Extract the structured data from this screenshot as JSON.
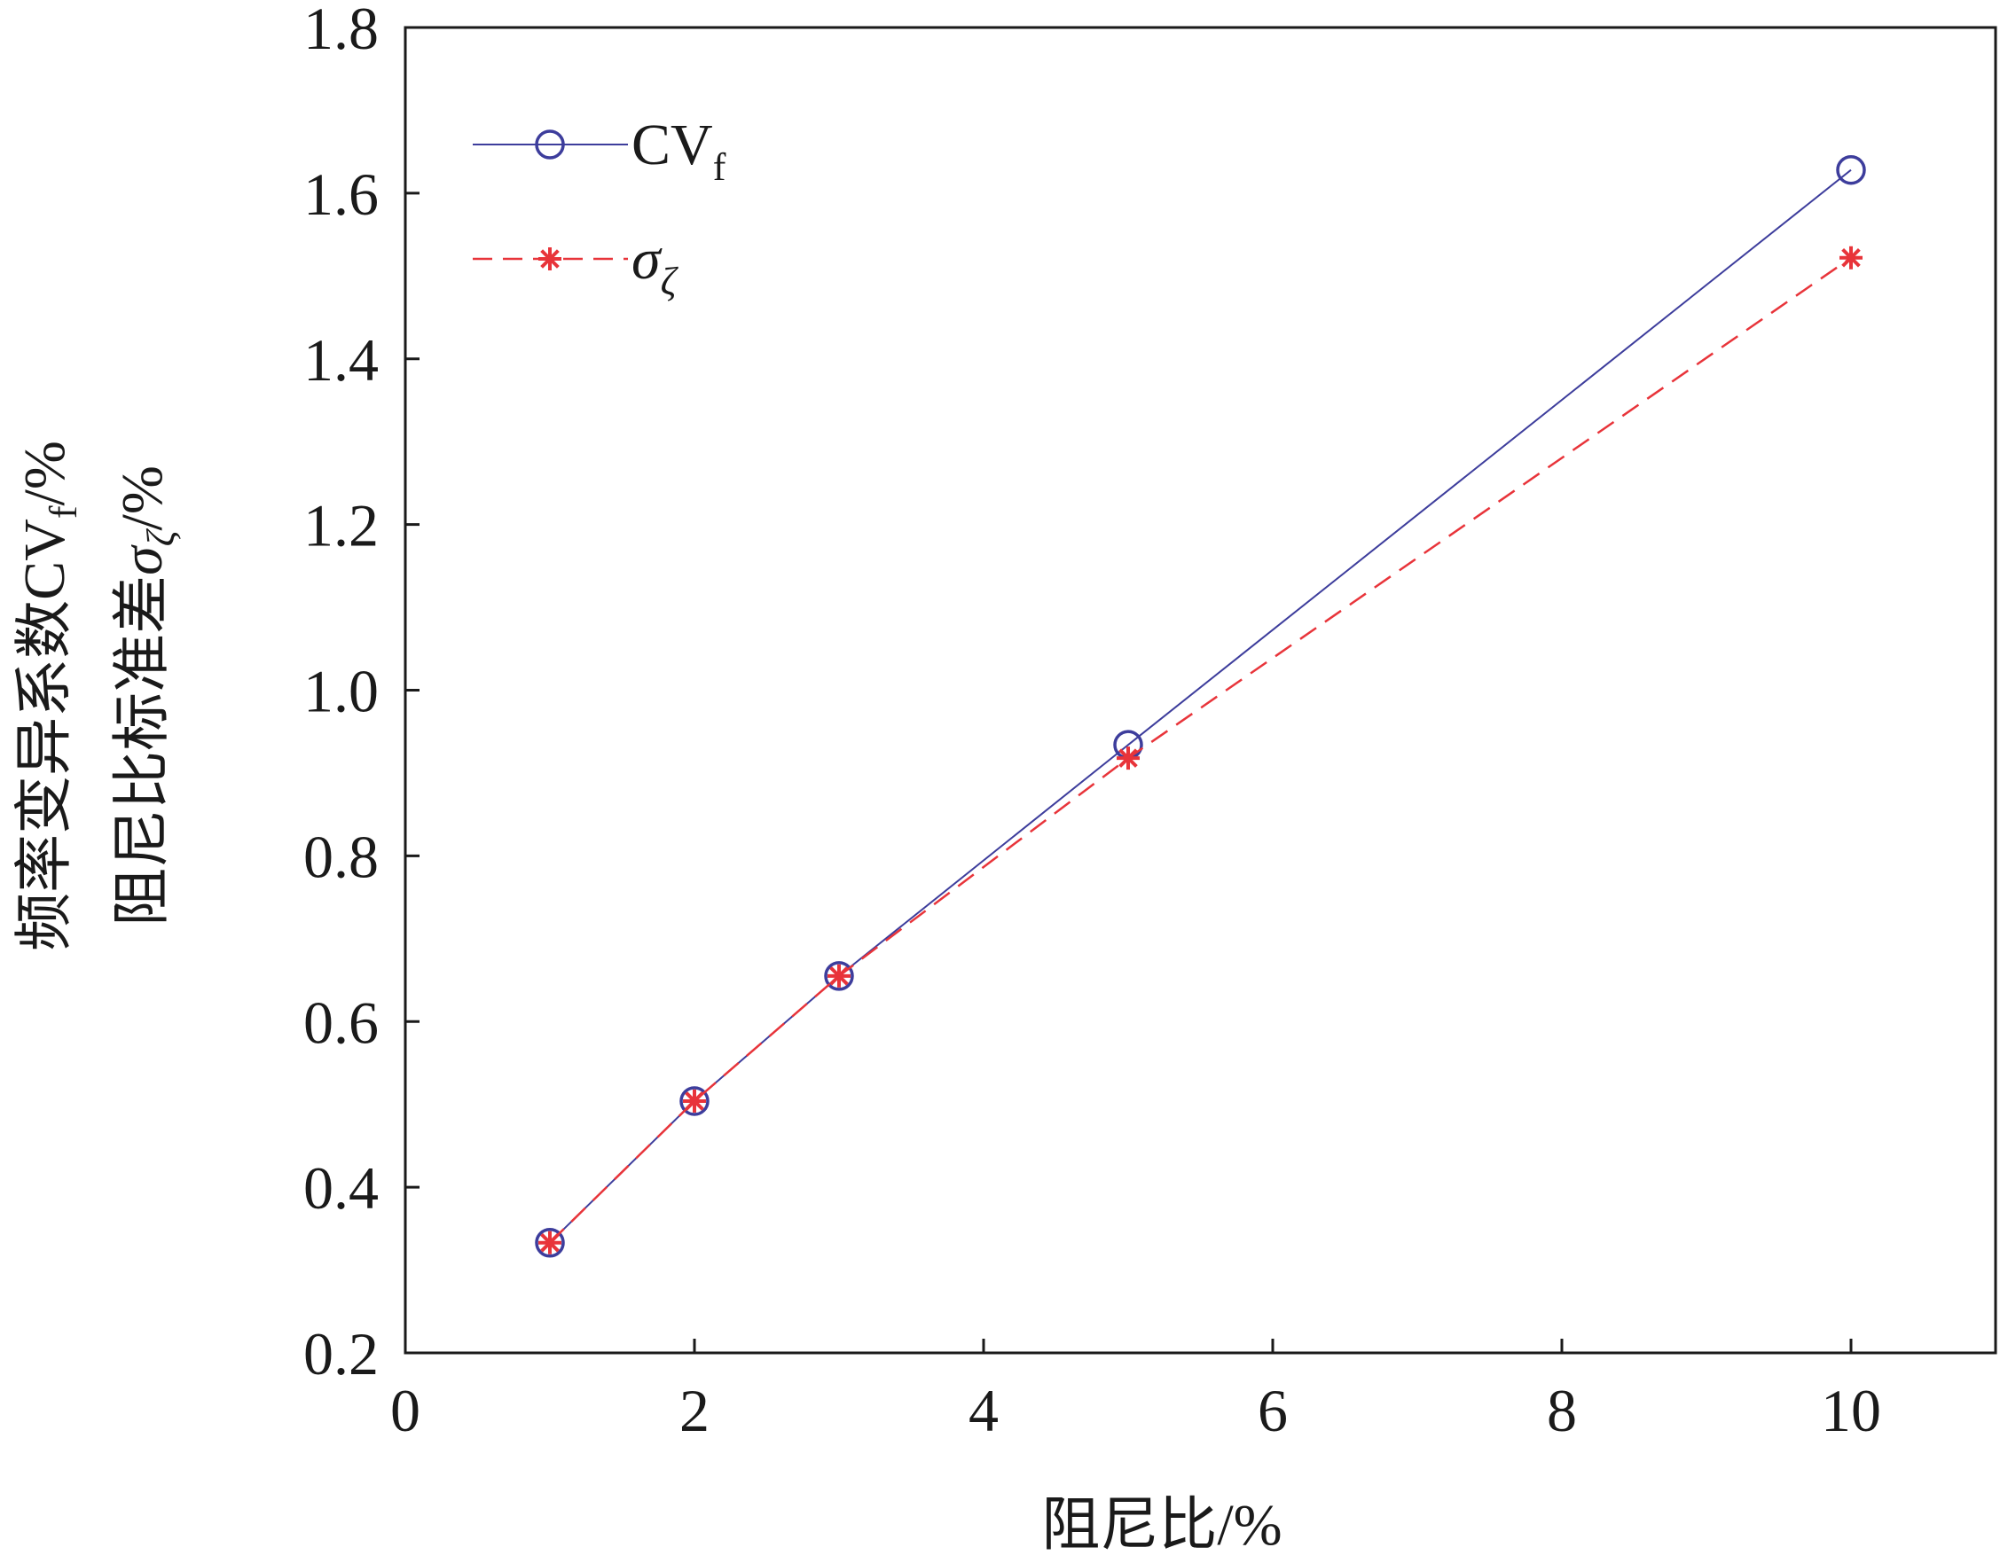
{
  "chart_data": {
    "type": "line",
    "xlabel": "阻尼比/%",
    "ylabel_line1": "频率变异系数CV",
    "ylabel_line1_sub": "f",
    "ylabel_line1_unit": "/%",
    "ylabel_line2": "阻尼比标准差",
    "ylabel_line2_sym": "σ",
    "ylabel_line2_sub": "ζ",
    "ylabel_line2_unit": "/%",
    "xlim": [
      0,
      11
    ],
    "ylim": [
      0.2,
      1.8
    ],
    "xticks": [
      0,
      2,
      4,
      6,
      8,
      10
    ],
    "xtick_labels": [
      "0",
      "2",
      "4",
      "6",
      "8",
      "10"
    ],
    "yticks": [
      0.2,
      0.4,
      0.6,
      0.8,
      1.0,
      1.2,
      1.4,
      1.6,
      1.8
    ],
    "ytick_labels": [
      "0.2",
      "0.4",
      "0.6",
      "0.8",
      "1.0",
      "1.2",
      "1.4",
      "1.6",
      "1.8"
    ],
    "grid": false,
    "legend_position": "top-left",
    "series": [
      {
        "name": "CV",
        "name_sub": "f",
        "marker": "circle",
        "line_style": "solid",
        "color": "#3d3d9c",
        "x": [
          1,
          2,
          3,
          5,
          10
        ],
        "y": [
          0.333,
          0.504,
          0.655,
          0.934,
          1.628
        ]
      },
      {
        "name": "σ",
        "name_sub": "ζ",
        "marker": "asterisk",
        "line_style": "dashed",
        "color": "#e8343a",
        "x": [
          1,
          2,
          3,
          5,
          10
        ],
        "y": [
          0.333,
          0.504,
          0.655,
          0.918,
          1.522
        ]
      }
    ]
  }
}
